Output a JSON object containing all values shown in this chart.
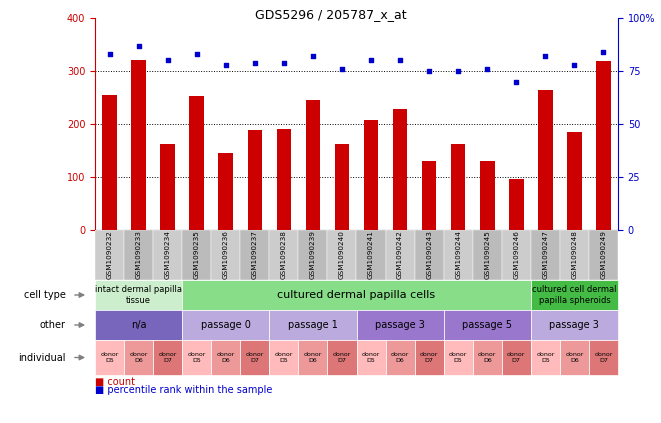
{
  "title": "GDS5296 / 205787_x_at",
  "samples": [
    "GSM1090232",
    "GSM1090233",
    "GSM1090234",
    "GSM1090235",
    "GSM1090236",
    "GSM1090237",
    "GSM1090238",
    "GSM1090239",
    "GSM1090240",
    "GSM1090241",
    "GSM1090242",
    "GSM1090243",
    "GSM1090244",
    "GSM1090245",
    "GSM1090246",
    "GSM1090247",
    "GSM1090248",
    "GSM1090249"
  ],
  "counts": [
    255,
    320,
    162,
    252,
    145,
    188,
    190,
    245,
    163,
    208,
    228,
    130,
    162,
    130,
    96,
    265,
    185,
    318
  ],
  "percentiles": [
    83,
    87,
    80,
    83,
    78,
    79,
    79,
    82,
    76,
    80,
    80,
    75,
    75,
    76,
    70,
    82,
    78,
    84
  ],
  "bar_color": "#cc0000",
  "dot_color": "#0000cc",
  "ylim_left": [
    0,
    400
  ],
  "ylim_right": [
    0,
    100
  ],
  "yticks_left": [
    0,
    100,
    200,
    300,
    400
  ],
  "yticks_right": [
    0,
    25,
    50,
    75,
    100
  ],
  "ytick_labels_right": [
    "0",
    "25",
    "50",
    "75",
    "100%"
  ],
  "grid_lines": [
    100,
    200,
    300
  ],
  "sample_bg_even": "#cccccc",
  "sample_bg_odd": "#bbbbbb",
  "cell_type_row": {
    "label": "cell type",
    "groups": [
      {
        "text": "intact dermal papilla\ntissue",
        "start": 0,
        "end": 3,
        "color": "#cceecc",
        "fontsize": 6
      },
      {
        "text": "cultured dermal papilla cells",
        "start": 3,
        "end": 15,
        "color": "#88dd88",
        "fontsize": 8
      },
      {
        "text": "cultured cell dermal\npapilla spheroids",
        "start": 15,
        "end": 18,
        "color": "#44bb44",
        "fontsize": 6
      }
    ]
  },
  "other_row": {
    "label": "other",
    "groups": [
      {
        "text": "n/a",
        "start": 0,
        "end": 3,
        "color": "#7766bb"
      },
      {
        "text": "passage 0",
        "start": 3,
        "end": 6,
        "color": "#bbaadd"
      },
      {
        "text": "passage 1",
        "start": 6,
        "end": 9,
        "color": "#bbaadd"
      },
      {
        "text": "passage 3",
        "start": 9,
        "end": 12,
        "color": "#9977cc"
      },
      {
        "text": "passage 5",
        "start": 12,
        "end": 15,
        "color": "#9977cc"
      },
      {
        "text": "passage 3",
        "start": 15,
        "end": 18,
        "color": "#bbaadd"
      }
    ]
  },
  "individual_row": {
    "label": "individual",
    "donors": [
      "donor\nD5",
      "donor\nD6",
      "donor\nD7",
      "donor\nD5",
      "donor\nD6",
      "donor\nD7",
      "donor\nD5",
      "donor\nD6",
      "donor\nD7",
      "donor\nD5",
      "donor\nD6",
      "donor\nD7",
      "donor\nD5",
      "donor\nD6",
      "donor\nD7",
      "donor\nD5",
      "donor\nD6",
      "donor\nD7"
    ],
    "colors": [
      "#ffbbbb",
      "#ee9999",
      "#dd7777",
      "#ffbbbb",
      "#ee9999",
      "#dd7777",
      "#ffbbbb",
      "#ee9999",
      "#dd7777",
      "#ffbbbb",
      "#ee9999",
      "#dd7777",
      "#ffbbbb",
      "#ee9999",
      "#dd7777",
      "#ffbbbb",
      "#ee9999",
      "#dd7777"
    ]
  },
  "background_color": "#ffffff"
}
